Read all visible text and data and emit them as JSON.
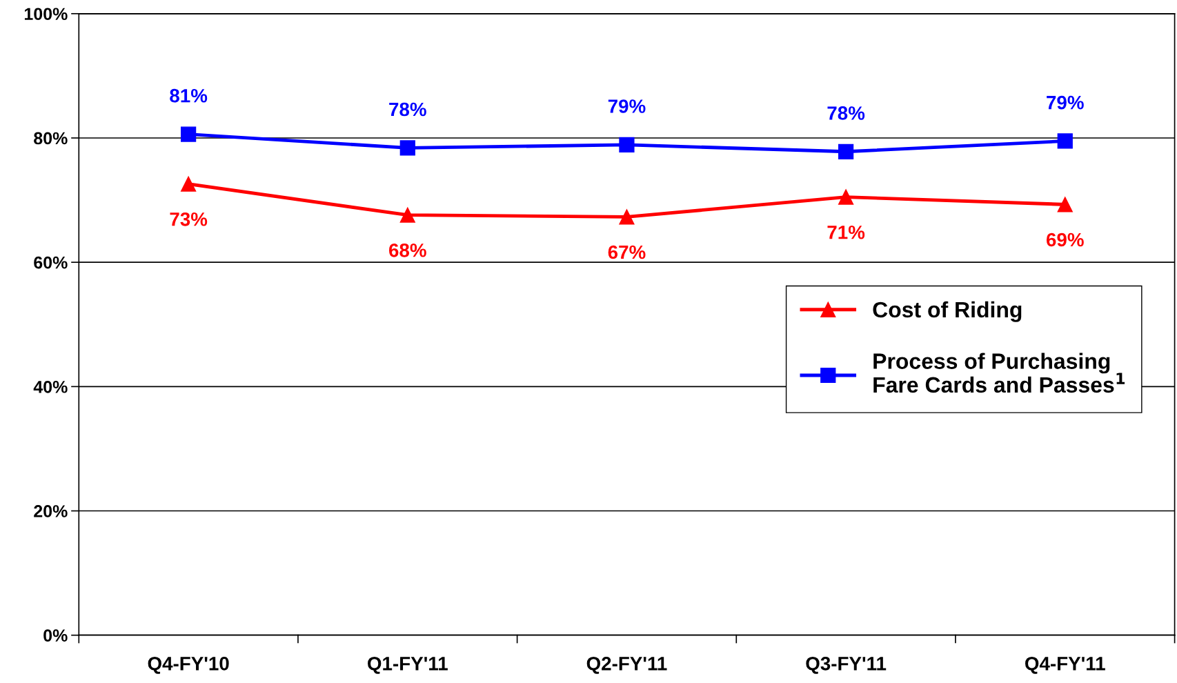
{
  "chart_data": {
    "type": "line",
    "categories": [
      "Q4-FY'10",
      "Q1-FY'11",
      "Q2-FY'11",
      "Q3-FY'11",
      "Q4-FY'11"
    ],
    "series": [
      {
        "name": "Cost of Riding",
        "color": "#ff0000",
        "marker": "triangle",
        "values": [
          72.6,
          67.6,
          67.3,
          70.5,
          69.3
        ],
        "value_labels": [
          "73%",
          "68%",
          "67%",
          "71%",
          "69%"
        ]
      },
      {
        "name": "Process of Purchasing\nFare Cards and Passes$^{1}$",
        "color": "#0000ff",
        "marker": "square",
        "values": [
          80.6,
          78.4,
          78.9,
          77.8,
          79.5
        ],
        "value_labels": [
          "81%",
          "78%",
          "79%",
          "78%",
          "79%"
        ]
      }
    ],
    "ylim": [
      0,
      100
    ],
    "yticks": [
      {
        "value": 0,
        "label": "0%"
      },
      {
        "value": 20,
        "label": "20%"
      },
      {
        "value": 40,
        "label": "40%"
      },
      {
        "value": 60,
        "label": "60%"
      },
      {
        "value": 80,
        "label": "80%"
      },
      {
        "value": 100,
        "label": "100%"
      }
    ],
    "grid": "y",
    "legend": "right",
    "line_style": "solid"
  }
}
